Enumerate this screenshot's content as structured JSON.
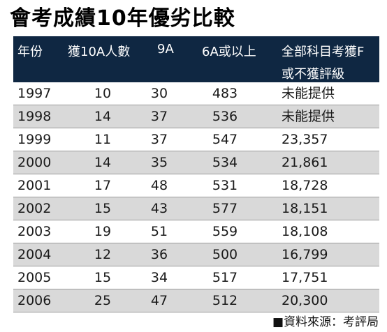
{
  "title": "會考成績10年優劣比較",
  "headers": {
    "year": "年份",
    "grade10a": "獲10A人數",
    "grade9a": "9A",
    "grade6a": "6A或以上",
    "failAll_line1": "全部科目考獲F",
    "failAll_line2": "或不獲評級"
  },
  "rows": [
    {
      "year": "1997",
      "grade10a": "10",
      "grade9a": "30",
      "grade6a": "483",
      "failAll": "未能提供"
    },
    {
      "year": "1998",
      "grade10a": "14",
      "grade9a": "37",
      "grade6a": "536",
      "failAll": "未能提供"
    },
    {
      "year": "1999",
      "grade10a": "11",
      "grade9a": "37",
      "grade6a": "547",
      "failAll": "23,357"
    },
    {
      "year": "2000",
      "grade10a": "14",
      "grade9a": "35",
      "grade6a": "534",
      "failAll": "21,861"
    },
    {
      "year": "2001",
      "grade10a": "17",
      "grade9a": "48",
      "grade6a": "531",
      "failAll": "18,728"
    },
    {
      "year": "2002",
      "grade10a": "15",
      "grade9a": "43",
      "grade6a": "577",
      "failAll": "18,151"
    },
    {
      "year": "2003",
      "grade10a": "19",
      "grade9a": "51",
      "grade6a": "559",
      "failAll": "18,108"
    },
    {
      "year": "2004",
      "grade10a": "12",
      "grade9a": "36",
      "grade6a": "500",
      "failAll": "16,799"
    },
    {
      "year": "2005",
      "grade10a": "15",
      "grade9a": "34",
      "grade6a": "517",
      "failAll": "17,751"
    },
    {
      "year": "2006",
      "grade10a": "25",
      "grade9a": "47",
      "grade6a": "512",
      "failAll": "20,300"
    }
  ],
  "source": "■資料來源：考評局",
  "colors": {
    "header_bg": "#0f2742",
    "header_text": "#ffffff",
    "shaded_row": "#d9d9d9",
    "row_divider": "#9a9a9a"
  }
}
